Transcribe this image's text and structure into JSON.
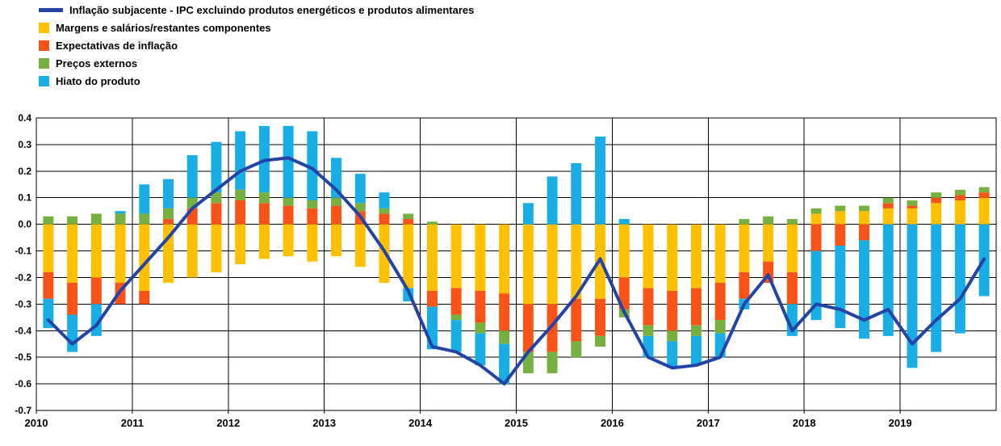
{
  "chart": {
    "title": "",
    "legend": [
      {
        "label": "Inflação subjacente - IPC excluindo produtos energéticos e produtos alimentares",
        "color": "#2343A6",
        "marker": "line"
      },
      {
        "label": "Margens e salários/restantes componentes",
        "color": "#FFC000",
        "marker": "square"
      },
      {
        "label": "Expectativas de inflação",
        "color": "#F95318",
        "marker": "square"
      },
      {
        "label": "Preços externos",
        "color": "#76B041",
        "marker": "square"
      },
      {
        "label": "Hiato do produto",
        "color": "#18AEE5",
        "marker": "square"
      }
    ]
  },
  "chart_data": {
    "type": "bar",
    "stacked": true,
    "overlay": "line",
    "title": "",
    "xlabel": "",
    "ylabel": "",
    "grid": true,
    "legend_position": "top-left",
    "ylim": [
      -0.7,
      0.4
    ],
    "ytick_step": 0.1,
    "y_tick_labels": [
      "0.4",
      "0.3",
      "0.2",
      "0.1",
      "0.0",
      "-0.1",
      "-0.2",
      "-0.3",
      "-0.4",
      "-0.5",
      "-0.6",
      "-0.7"
    ],
    "x_tick_labels": [
      "2010",
      "2011",
      "2012",
      "2013",
      "2014",
      "2015",
      "2016",
      "2017",
      "2018",
      "2019"
    ],
    "x": [
      "2010Q1",
      "2010Q2",
      "2010Q3",
      "2010Q4",
      "2011Q1",
      "2011Q2",
      "2011Q3",
      "2011Q4",
      "2012Q1",
      "2012Q2",
      "2012Q3",
      "2012Q4",
      "2013Q1",
      "2013Q2",
      "2013Q3",
      "2013Q4",
      "2014Q1",
      "2014Q2",
      "2014Q3",
      "2014Q4",
      "2015Q1",
      "2015Q2",
      "2015Q3",
      "2015Q4",
      "2016Q1",
      "2016Q2",
      "2016Q3",
      "2016Q4",
      "2017Q1",
      "2017Q2",
      "2017Q3",
      "2017Q4",
      "2018Q1",
      "2018Q2",
      "2018Q3",
      "2018Q4",
      "2019Q1",
      "2019Q2",
      "2019Q3",
      "2019Q4"
    ],
    "series": [
      {
        "name": "Margens e salários/restantes componentes",
        "color": "#FFC000",
        "values": [
          -0.18,
          -0.22,
          -0.2,
          -0.22,
          -0.25,
          -0.22,
          -0.2,
          -0.18,
          -0.15,
          -0.13,
          -0.12,
          -0.14,
          -0.12,
          -0.16,
          -0.22,
          -0.24,
          -0.25,
          -0.24,
          -0.25,
          -0.26,
          -0.3,
          -0.3,
          -0.28,
          -0.28,
          -0.2,
          -0.24,
          -0.25,
          -0.24,
          -0.22,
          -0.18,
          -0.14,
          -0.18,
          0.04,
          0.05,
          0.05,
          0.06,
          0.06,
          0.08,
          0.09,
          0.1
        ]
      },
      {
        "name": "Expectativas de inflação",
        "color": "#F95318",
        "values": [
          -0.1,
          -0.12,
          -0.1,
          -0.08,
          -0.05,
          0.02,
          0.06,
          0.08,
          0.09,
          0.08,
          0.07,
          0.06,
          0.07,
          0.05,
          0.04,
          0.02,
          -0.06,
          -0.1,
          -0.12,
          -0.14,
          -0.18,
          -0.18,
          -0.16,
          -0.14,
          -0.12,
          -0.14,
          -0.15,
          -0.14,
          -0.14,
          -0.1,
          -0.08,
          -0.12,
          -0.1,
          -0.08,
          -0.06,
          0.02,
          0.01,
          0.02,
          0.02,
          0.02
        ]
      },
      {
        "name": "Preços externos",
        "color": "#76B041",
        "values": [
          0.03,
          0.03,
          0.04,
          0.04,
          0.04,
          0.04,
          0.04,
          0.04,
          0.04,
          0.04,
          0.03,
          0.03,
          0.03,
          0.03,
          0.02,
          0.02,
          0.01,
          -0.02,
          -0.04,
          -0.05,
          -0.08,
          -0.08,
          -0.06,
          -0.04,
          -0.03,
          -0.04,
          -0.04,
          -0.04,
          -0.05,
          0.02,
          0.03,
          0.02,
          0.02,
          0.02,
          0.02,
          0.02,
          0.02,
          0.02,
          0.02,
          0.02
        ]
      },
      {
        "name": "Hiato do produto",
        "color": "#18AEE5",
        "values": [
          -0.11,
          -0.14,
          -0.12,
          0.01,
          0.11,
          0.11,
          0.16,
          0.19,
          0.22,
          0.25,
          0.27,
          0.26,
          0.15,
          0.11,
          0.06,
          -0.05,
          -0.16,
          -0.12,
          -0.12,
          -0.15,
          0.08,
          0.18,
          0.23,
          0.33,
          0.02,
          -0.08,
          -0.1,
          -0.11,
          -0.09,
          -0.04,
          0,
          -0.12,
          -0.26,
          -0.31,
          -0.37,
          -0.42,
          -0.54,
          -0.48,
          -0.41,
          -0.27
        ]
      }
    ],
    "line_series": {
      "name": "Inflação subjacente - IPC excluindo produtos energéticos e produtos alimentares",
      "color": "#2343A6",
      "values": [
        -0.36,
        -0.45,
        -0.38,
        -0.25,
        -0.15,
        -0.05,
        0.06,
        0.13,
        0.2,
        0.24,
        0.25,
        0.21,
        0.13,
        0.03,
        -0.1,
        -0.25,
        -0.46,
        -0.48,
        -0.53,
        -0.6,
        -0.48,
        -0.38,
        -0.27,
        -0.13,
        -0.33,
        -0.5,
        -0.54,
        -0.53,
        -0.5,
        -0.3,
        -0.19,
        -0.4,
        -0.3,
        -0.32,
        -0.36,
        -0.32,
        -0.45,
        -0.36,
        -0.28,
        -0.13
      ]
    }
  }
}
